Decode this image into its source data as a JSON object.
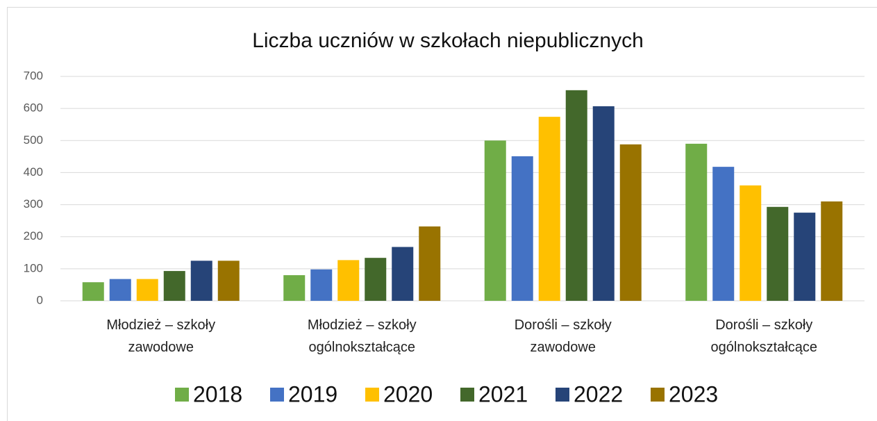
{
  "chart_data": {
    "type": "bar",
    "title": "Liczba uczniów w szkołach niepublicznych",
    "categories": [
      "Młodzież – szkoły\nzawodowe",
      "Młodzież – szkoły\nogólnokształcące",
      "Dorośli – szkoły\nzawodowe",
      "Dorośli – szkoły\nogólnokształcące"
    ],
    "series": [
      {
        "name": "2018",
        "color": "#70ad47",
        "values": [
          58,
          80,
          500,
          490
        ]
      },
      {
        "name": "2019",
        "color": "#4472c4",
        "values": [
          68,
          98,
          451,
          418
        ]
      },
      {
        "name": "2020",
        "color": "#ffc000",
        "values": [
          68,
          127,
          574,
          360
        ]
      },
      {
        "name": "2021",
        "color": "#43682b",
        "values": [
          93,
          134,
          657,
          293
        ]
      },
      {
        "name": "2022",
        "color": "#264478",
        "values": [
          125,
          168,
          607,
          275
        ]
      },
      {
        "name": "2023",
        "color": "#997300",
        "values": [
          125,
          232,
          488,
          310
        ]
      }
    ],
    "ylim": [
      0,
      700
    ],
    "yticks": [
      0,
      100,
      200,
      300,
      400,
      500,
      600,
      700
    ],
    "grid": true,
    "legend": "bottom"
  }
}
